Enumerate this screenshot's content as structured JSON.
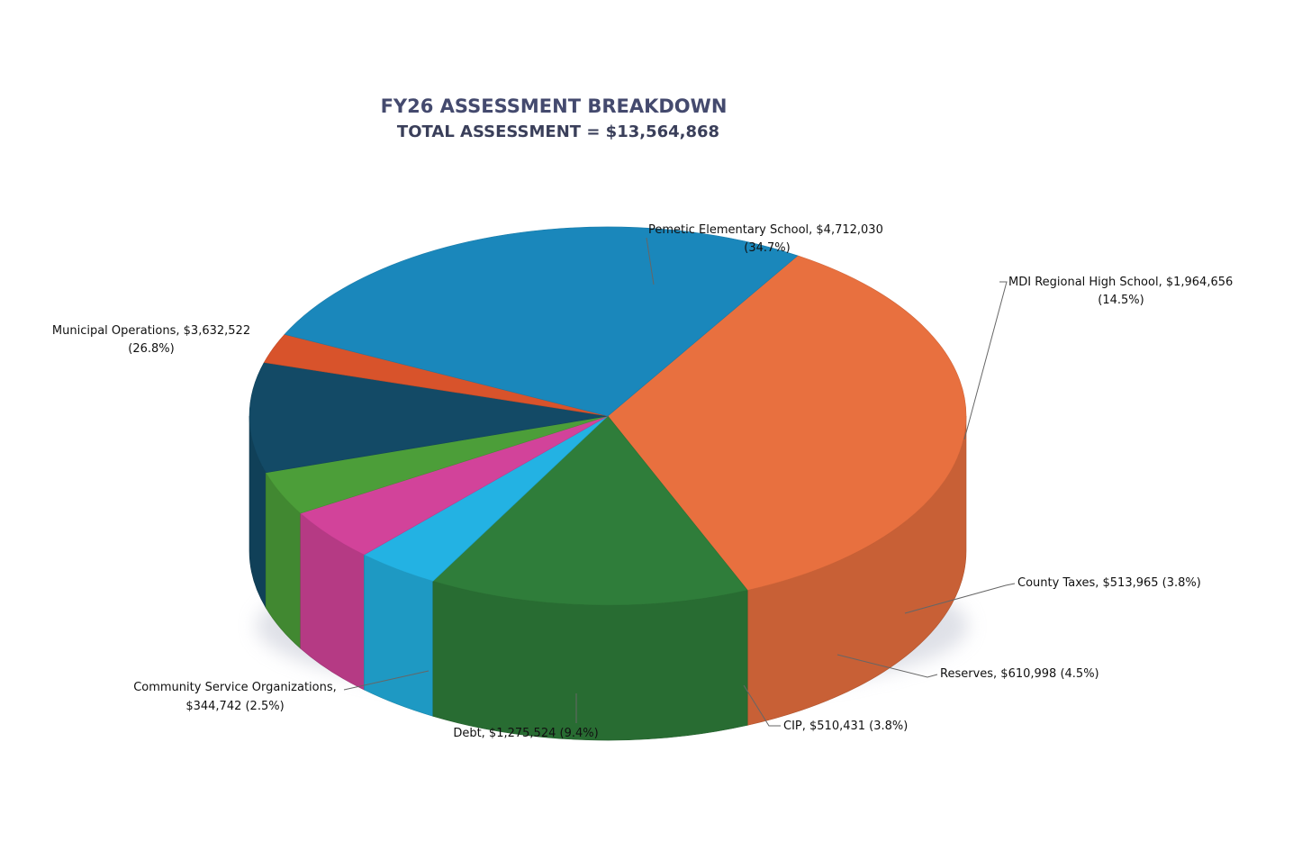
{
  "chart_data": {
    "type": "pie",
    "style": "3d-pie",
    "title": "FY26 ASSESSMENT BREAKDOWN",
    "subtitle": "TOTAL ASSESSMENT = $13,564,868",
    "total": 13564868,
    "slices": [
      {
        "name": "Pemetic Elementary School",
        "value": 4712030,
        "percent": 34.7,
        "color": "#e8703f",
        "label_lines": [
          "Pemetic Elementary School,  $4,712,030",
          "(34.7%)"
        ]
      },
      {
        "name": "MDI Regional High School",
        "value": 1964656,
        "percent": 14.5,
        "color": "#2f7d3a",
        "label_lines": [
          "MDI Regional High School,  $1,964,656",
          "(14.5%)"
        ]
      },
      {
        "name": "County Taxes",
        "value": 513965,
        "percent": 3.8,
        "color": "#23b2e3",
        "label_lines": [
          "County Taxes,  $513,965 (3.8%)"
        ]
      },
      {
        "name": "Reserves",
        "value": 610998,
        "percent": 4.5,
        "color": "#d2439a",
        "label_lines": [
          "Reserves,  $610,998 (4.5%)"
        ]
      },
      {
        "name": "CIP",
        "value": 510431,
        "percent": 3.8,
        "color": "#4c9e39",
        "label_lines": [
          "CIP,  $510,431  (3.8%)"
        ]
      },
      {
        "name": "Debt",
        "value": 1275524,
        "percent": 9.4,
        "color": "#134a66",
        "label_lines": [
          "Debt,  $1,275,524 (9.4%)"
        ]
      },
      {
        "name": "Community Service Organizations",
        "value": 344742,
        "percent": 2.5,
        "color": "#d8532b",
        "label_lines": [
          "Community Service Organizations,",
          "$344,742  (2.5%)"
        ]
      },
      {
        "name": "Municipal Operations",
        "value": 3632522,
        "percent": 26.8,
        "color": "#1a87bb",
        "label_lines": [
          "Municipal Operations,  $3,632,522",
          "(26.8%)"
        ]
      }
    ]
  }
}
